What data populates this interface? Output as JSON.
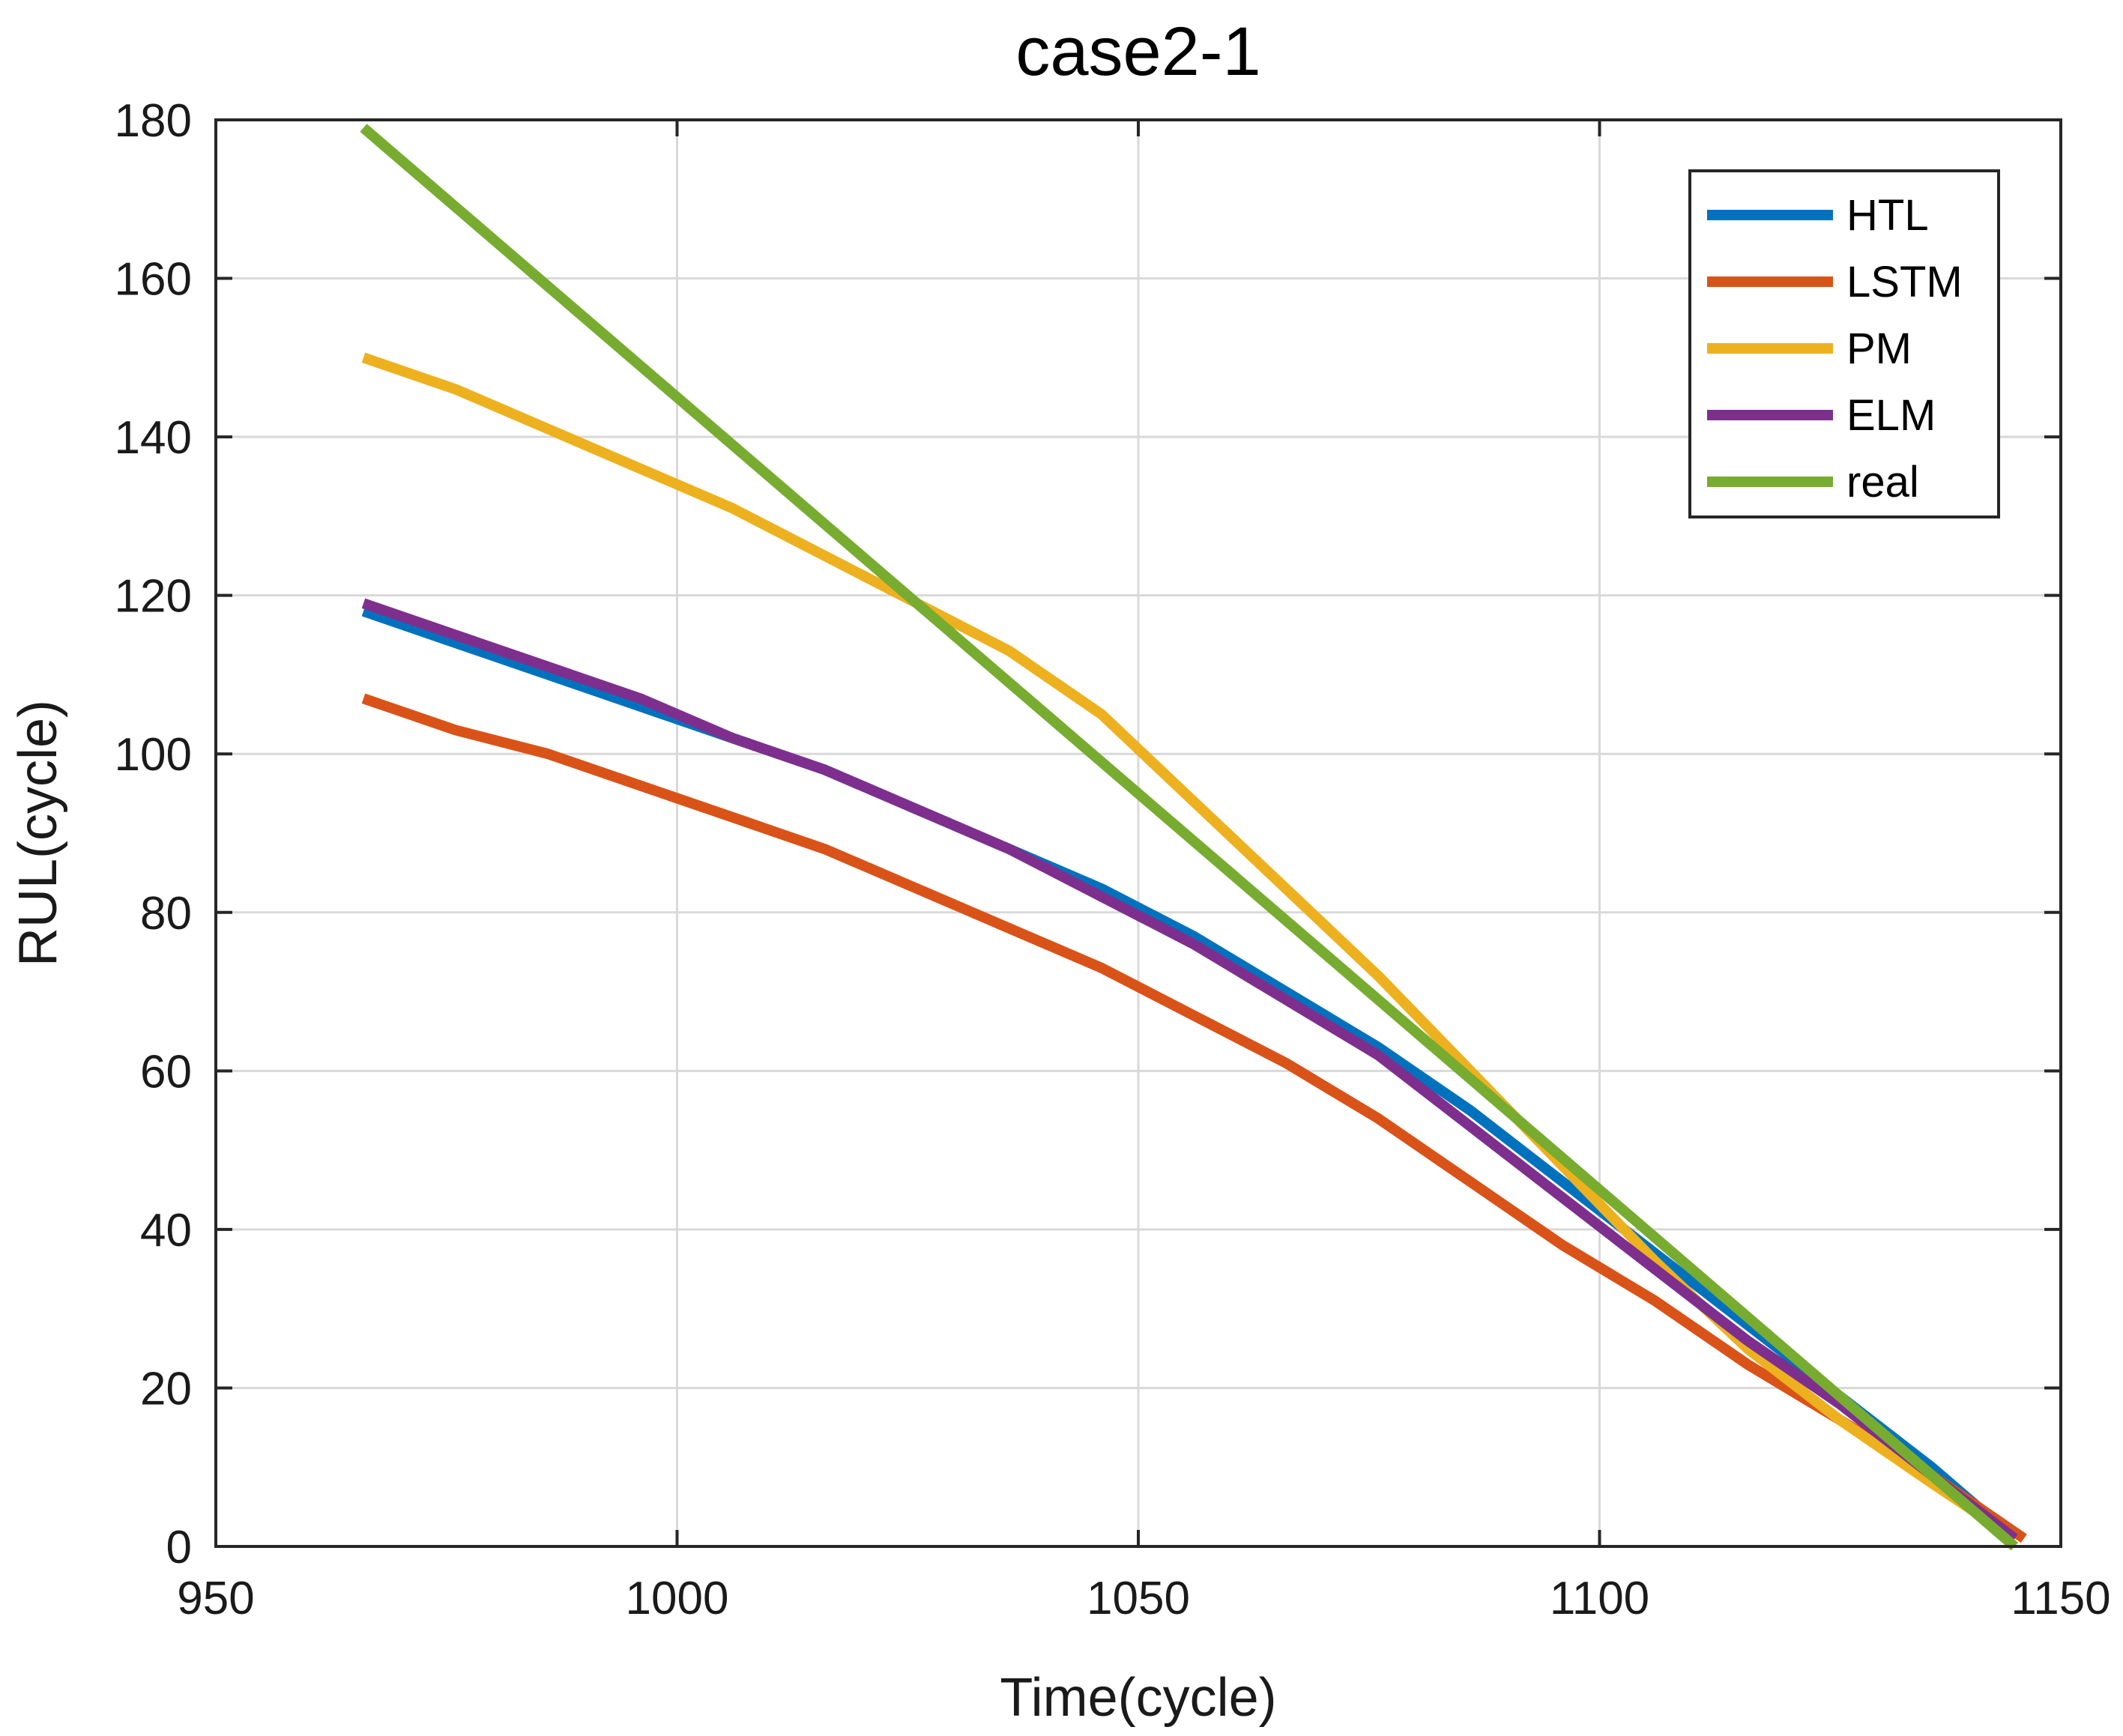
{
  "chart_data": {
    "type": "line",
    "title": "case2-1",
    "xlabel": "Time(cycle)",
    "ylabel": "RUL(cycle)",
    "xlim": [
      950,
      1150
    ],
    "ylim": [
      0,
      180
    ],
    "xticks": [
      950,
      1000,
      1050,
      1100,
      1150
    ],
    "yticks": [
      0,
      20,
      40,
      60,
      80,
      100,
      120,
      140,
      160,
      180
    ],
    "grid": true,
    "legend_position": "top-right",
    "series": [
      {
        "name": "HTL",
        "color": "#0072BD",
        "points": [
          [
            966,
            118
          ],
          [
            976,
            114
          ],
          [
            986,
            110
          ],
          [
            996,
            106
          ],
          [
            1006,
            102
          ],
          [
            1016,
            98
          ],
          [
            1026,
            93
          ],
          [
            1036,
            88
          ],
          [
            1046,
            83
          ],
          [
            1056,
            77
          ],
          [
            1066,
            70
          ],
          [
            1076,
            63
          ],
          [
            1086,
            55
          ],
          [
            1096,
            46
          ],
          [
            1106,
            37
          ],
          [
            1116,
            28
          ],
          [
            1126,
            19
          ],
          [
            1136,
            10
          ],
          [
            1145,
            1
          ]
        ]
      },
      {
        "name": "LSTM",
        "color": "#D95319",
        "points": [
          [
            966,
            107
          ],
          [
            976,
            103
          ],
          [
            986,
            100
          ],
          [
            996,
            96
          ],
          [
            1006,
            92
          ],
          [
            1016,
            88
          ],
          [
            1026,
            83
          ],
          [
            1036,
            78
          ],
          [
            1046,
            73
          ],
          [
            1056,
            67
          ],
          [
            1066,
            61
          ],
          [
            1076,
            54
          ],
          [
            1086,
            46
          ],
          [
            1096,
            38
          ],
          [
            1106,
            31
          ],
          [
            1116,
            23
          ],
          [
            1126,
            16
          ],
          [
            1136,
            9
          ],
          [
            1146,
            1
          ]
        ]
      },
      {
        "name": "PM",
        "color": "#EDB120",
        "points": [
          [
            966,
            150
          ],
          [
            976,
            146
          ],
          [
            986,
            141
          ],
          [
            996,
            136
          ],
          [
            1006,
            131
          ],
          [
            1016,
            125
          ],
          [
            1026,
            119
          ],
          [
            1036,
            113
          ],
          [
            1046,
            105
          ],
          [
            1056,
            94
          ],
          [
            1066,
            83
          ],
          [
            1076,
            72
          ],
          [
            1086,
            60
          ],
          [
            1096,
            48
          ],
          [
            1106,
            36
          ],
          [
            1116,
            25
          ],
          [
            1126,
            16
          ],
          [
            1136,
            8
          ],
          [
            1145,
            1
          ]
        ]
      },
      {
        "name": "ELM",
        "color": "#7E2F8E",
        "points": [
          [
            966,
            119
          ],
          [
            976,
            115
          ],
          [
            986,
            111
          ],
          [
            996,
            107
          ],
          [
            1006,
            102
          ],
          [
            1016,
            98
          ],
          [
            1026,
            93
          ],
          [
            1036,
            88
          ],
          [
            1046,
            82
          ],
          [
            1056,
            76
          ],
          [
            1066,
            69
          ],
          [
            1076,
            62
          ],
          [
            1086,
            53
          ],
          [
            1096,
            44
          ],
          [
            1106,
            35
          ],
          [
            1116,
            26
          ],
          [
            1126,
            18
          ],
          [
            1136,
            9
          ],
          [
            1145,
            1
          ]
        ]
      },
      {
        "name": "real",
        "color": "#77AC30",
        "points": [
          [
            966,
            179
          ],
          [
            1145,
            0
          ]
        ]
      }
    ]
  }
}
